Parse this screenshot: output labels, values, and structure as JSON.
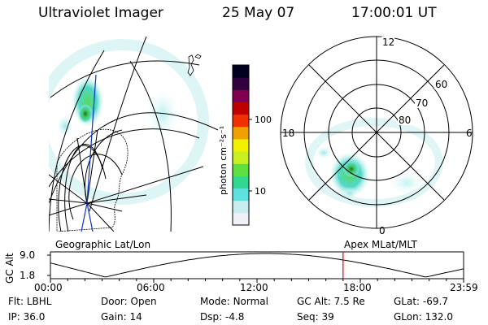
{
  "header": {
    "instrument": "Ultraviolet Imager",
    "date": "25 May 07",
    "time": "17:00:01 UT"
  },
  "left_panel": {
    "label": "Geographic Lat/Lon",
    "map_style": "continents-outline",
    "emission_color": "#30d4b8"
  },
  "right_panel": {
    "label": "Apex MLat/MLT",
    "mlt_labels": [
      "12",
      "18",
      "6",
      "0"
    ],
    "lat_labels": [
      "60",
      "70",
      "80"
    ]
  },
  "colorbar": {
    "unit": "photon cm⁻²s⁻¹",
    "tick_labels": [
      "100",
      "10"
    ],
    "scale": "log",
    "colors": [
      "#f0f0f8",
      "#c8ecf0",
      "#60e0e0",
      "#30d890",
      "#60e040",
      "#c8f020",
      "#f0f000",
      "#f0a000",
      "#f03000",
      "#c00000",
      "#800050",
      "#300040",
      "#000020"
    ]
  },
  "timeline": {
    "ylabel": "GC Alt",
    "yticks": [
      "9.0",
      "1.8"
    ],
    "xticks": [
      "00:00",
      "06:00",
      "12:00",
      "18:00",
      "23:59"
    ],
    "marker_time": "17:00",
    "marker_color": "#e00000"
  },
  "info": [
    {
      "label": "Flt:",
      "value": "LBHL"
    },
    {
      "label": "Door:",
      "value": "Open"
    },
    {
      "label": "Mode:",
      "value": "Normal"
    },
    {
      "label": "GC Alt:",
      "value": "7.5 Re"
    },
    {
      "label": "GLat:",
      "value": "-69.7"
    },
    {
      "label": "IP:",
      "value": "36.0"
    },
    {
      "label": "Gain:",
      "value": "14"
    },
    {
      "label": "Dsp:",
      "value": "-4.8"
    },
    {
      "label": "Seq:",
      "value": "39"
    },
    {
      "label": "GLon:",
      "value": "132.0"
    }
  ]
}
